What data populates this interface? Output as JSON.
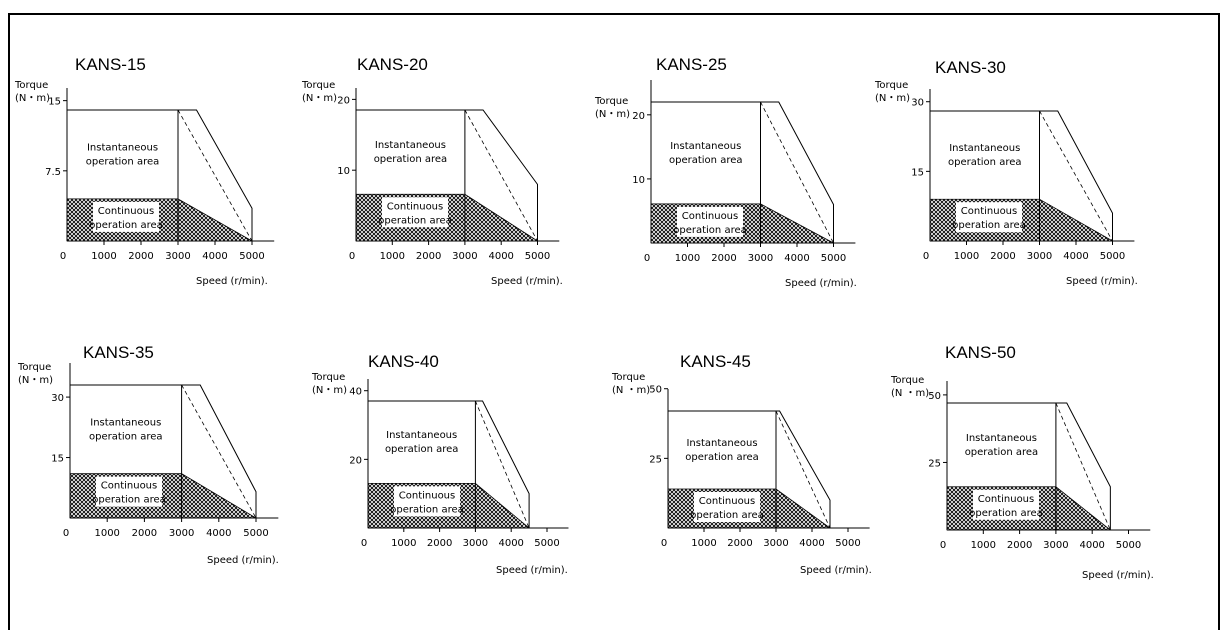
{
  "chart_data": [
    {
      "type": "area",
      "title": "KANS-15",
      "ylabel_top": "Torque",
      "ylabel_unit": "(N・m)",
      "xlabel": "Speed (r/min).",
      "xticks": [
        0,
        1000,
        2000,
        3000,
        4000,
        5000
      ],
      "yticks": [
        7.5,
        15
      ],
      "xlim": [
        0,
        5000
      ],
      "ylim": [
        0,
        15
      ],
      "instantaneous_max": 14,
      "continuous_max": 4.5,
      "corner_speed": 3000,
      "max_speed": 5000,
      "inst_knee_speed": 3500,
      "inst_end_torque": 3.5,
      "dashed_from": [
        3000,
        14
      ],
      "instantaneous_label": "Instantaneous|operation area",
      "continuous_label": "Continuous|operation area"
    },
    {
      "type": "area",
      "title": "KANS-20",
      "ylabel_top": "Torque",
      "ylabel_unit": "(N・m)",
      "xlabel": "Speed (r/min).",
      "xticks": [
        0,
        1000,
        2000,
        3000,
        4000,
        5000
      ],
      "yticks": [
        10,
        20
      ],
      "xlim": [
        0,
        5000
      ],
      "ylim": [
        0,
        20
      ],
      "instantaneous_max": 18.5,
      "continuous_max": 6.6,
      "corner_speed": 3000,
      "max_speed": 5000,
      "inst_knee_speed": 3500,
      "inst_end_torque": 8,
      "dashed_from": [
        3000,
        18.5
      ],
      "instantaneous_label": "Instantaneous|operation area",
      "continuous_label": "Continuous|operation area"
    },
    {
      "type": "area",
      "title": "KANS-25",
      "ylabel_top": "Torque",
      "ylabel_unit": "(N・m)",
      "xlabel": "Speed (r/min).",
      "xticks": [
        0,
        1000,
        2000,
        3000,
        4000,
        5000
      ],
      "yticks": [
        10,
        20
      ],
      "xlim": [
        0,
        5000
      ],
      "ylim": [
        0,
        24
      ],
      "instantaneous_max": 22,
      "continuous_max": 6.1,
      "corner_speed": 3000,
      "max_speed": 5000,
      "inst_knee_speed": 3500,
      "inst_end_torque": 6,
      "dashed_from": [
        3000,
        22
      ],
      "instantaneous_label": "Instantaneous|operation area",
      "continuous_label": "Continuous|operation area"
    },
    {
      "type": "area",
      "title": "KANS-30",
      "ylabel_top": "Torque",
      "ylabel_unit": "(N・m)",
      "xlabel": "Speed (r/min).",
      "xticks": [
        0,
        1000,
        2000,
        3000,
        4000,
        5000
      ],
      "yticks": [
        15,
        30
      ],
      "xlim": [
        0,
        5000
      ],
      "ylim": [
        0,
        30
      ],
      "instantaneous_max": 28,
      "continuous_max": 9,
      "corner_speed": 3000,
      "max_speed": 5000,
      "inst_knee_speed": 3500,
      "inst_end_torque": 6,
      "dashed_from": [
        3000,
        28
      ],
      "instantaneous_label": "Instantaneous|operation area",
      "continuous_label": "Continuous|operation area"
    },
    {
      "type": "area",
      "title": "KANS-35",
      "ylabel_top": "Torque",
      "ylabel_unit": "(N・m)",
      "xlabel": "Speed (r/min).",
      "xticks": [
        0,
        1000,
        2000,
        3000,
        4000,
        5000
      ],
      "yticks": [
        15,
        30
      ],
      "xlim": [
        0,
        5000
      ],
      "ylim": [
        0,
        30
      ],
      "instantaneous_max": 33,
      "continuous_max": 11,
      "corner_speed": 3000,
      "max_speed": 5000,
      "inst_knee_speed": 3500,
      "inst_end_torque": 6.5,
      "dashed_from": [
        3000,
        33
      ],
      "instantaneous_label": "Instantaneous|operation area",
      "continuous_label": "Continuous|operation area"
    },
    {
      "type": "area",
      "title": "KANS-40",
      "ylabel_top": "Torque",
      "ylabel_unit": "(N・m)",
      "xlabel": "Speed (r/min).",
      "xticks": [
        0,
        1000,
        2000,
        3000,
        4000,
        5000
      ],
      "yticks": [
        20,
        40
      ],
      "xlim": [
        0,
        5000
      ],
      "ylim": [
        0,
        40
      ],
      "instantaneous_max": 37,
      "continuous_max": 13,
      "corner_speed": 3000,
      "max_speed": 4500,
      "inst_knee_speed": 3200,
      "inst_end_torque": 10,
      "dashed_from": [
        3000,
        37
      ],
      "instantaneous_label": "Instantaneous|operation area",
      "continuous_label": "Continuous|operation area"
    },
    {
      "type": "area",
      "title": "KANS-45",
      "ylabel_top": "Torque",
      "ylabel_unit": "(N ・m)",
      "xlabel": "Speed (r/min).",
      "xticks": [
        0,
        1000,
        2000,
        3000,
        4000,
        5000
      ],
      "yticks": [
        25,
        50
      ],
      "xlim": [
        0,
        5000
      ],
      "ylim": [
        0,
        50
      ],
      "instantaneous_max": 42,
      "continuous_max": 14,
      "corner_speed": 3000,
      "max_speed": 4500,
      "inst_knee_speed": 3100,
      "inst_end_torque": 10,
      "dashed_from": [
        3000,
        42
      ],
      "instantaneous_label": "Instantaneous|operation area",
      "continuous_label": "Continuous|operation area"
    },
    {
      "type": "area",
      "title": "KANS-50",
      "ylabel_top": "Torque",
      "ylabel_unit": "(N ・m)",
      "xlabel": "Speed (r/min).",
      "xticks": [
        0,
        1000,
        2000,
        3000,
        4000,
        5000
      ],
      "yticks": [
        25,
        50
      ],
      "xlim": [
        0,
        5000
      ],
      "ylim": [
        0,
        50
      ],
      "instantaneous_max": 47,
      "continuous_max": 16,
      "corner_speed": 3000,
      "max_speed": 4500,
      "inst_knee_speed": 3300,
      "inst_end_torque": 16,
      "dashed_from": [
        3000,
        47
      ],
      "instantaneous_label": "Instantaneous|operation area",
      "continuous_label": "Continuous|operation area"
    }
  ]
}
